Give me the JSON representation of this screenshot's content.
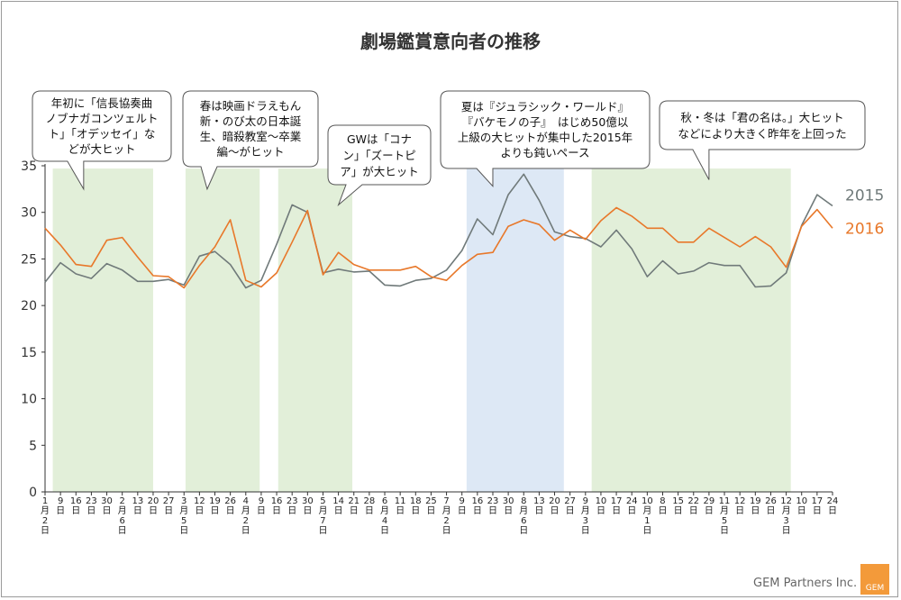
{
  "chart_data": {
    "type": "line",
    "title": "劇場鑑賞意向者の推移",
    "ylim": [
      0,
      35
    ],
    "yticks": [
      0,
      5,
      10,
      15,
      20,
      25,
      30,
      35
    ],
    "grid": false,
    "x_labels": [
      "1\n月\n2\n日",
      "9\n日",
      "16\n日",
      "23\n日",
      "30\n日",
      "2\n月\n6\n日",
      "13\n日",
      "20\n日",
      "27\n日",
      "3\n月\n5\n日",
      "12\n日",
      "19\n日",
      "26\n日",
      "4\n月\n2\n日",
      "9\n日",
      "16\n日",
      "23\n日",
      "30\n日",
      "5\n月\n7\n日",
      "14\n日",
      "21\n日",
      "28\n日",
      "6\n月\n4\n日",
      "11\n日",
      "18\n日",
      "25\n日",
      "7\n月\n2\n日",
      "9\n日",
      "16\n日",
      "23\n日",
      "30\n日",
      "8\n月\n6\n日",
      "13\n日",
      "20\n日",
      "27\n日",
      "9\n月\n3\n日",
      "10\n日",
      "17\n日",
      "24\n日",
      "10\n月\n1\n日",
      "8\n日",
      "15\n日",
      "22\n日",
      "29\n日",
      "11\n月\n5\n日",
      "12\n日",
      "19\n日",
      "26\n日",
      "12\n月\n3\n日",
      "10\n日",
      "17\n日",
      "24\n日"
    ],
    "series": [
      {
        "name": "2015",
        "color": "#707a7a",
        "values": [
          22.5,
          24.6,
          23.4,
          22.9,
          24.5,
          23.8,
          22.6,
          22.6,
          22.8,
          22.2,
          25.3,
          25.8,
          24.4,
          21.9,
          22.7,
          26.6,
          30.8,
          30.0,
          23.5,
          23.9,
          23.6,
          23.7,
          22.2,
          22.1,
          22.7,
          22.9,
          23.8,
          25.9,
          29.3,
          27.6,
          31.9,
          34.1,
          31.3,
          27.9,
          27.4,
          27.2,
          26.3,
          28.1,
          26.1,
          23.1,
          24.8,
          23.4,
          23.7,
          24.6,
          24.3,
          24.3,
          22.0,
          22.1,
          23.5,
          28.6,
          31.9,
          30.7
        ]
      },
      {
        "name": "2016",
        "color": "#e8782a",
        "values": [
          28.3,
          26.5,
          24.4,
          24.2,
          27.0,
          27.3,
          25.2,
          23.2,
          23.1,
          21.9,
          24.3,
          26.3,
          29.2,
          22.7,
          22.0,
          23.5,
          26.8,
          30.2,
          23.3,
          25.7,
          24.4,
          23.8,
          23.8,
          23.8,
          24.2,
          23.1,
          22.7,
          24.3,
          25.5,
          25.7,
          28.5,
          29.2,
          28.7,
          27.0,
          28.1,
          27.1,
          29.1,
          30.5,
          29.6,
          28.3,
          28.3,
          26.8,
          26.8,
          28.3,
          27.3,
          26.3,
          27.4,
          26.3,
          24.1,
          28.5,
          30.3,
          28.3
        ]
      }
    ],
    "highlight_bands": [
      {
        "start_index": 0.5,
        "end_index": 7.0,
        "color": "#e2efd9"
      },
      {
        "start_index": 9.1,
        "end_index": 13.9,
        "color": "#e2efd9"
      },
      {
        "start_index": 15.1,
        "end_index": 19.9,
        "color": "#e2efd9"
      },
      {
        "start_index": 27.3,
        "end_index": 33.6,
        "color": "#dde8f5"
      },
      {
        "start_index": 35.4,
        "end_index": 48.3,
        "color": "#e2efd9"
      }
    ],
    "annotations": [
      {
        "lines": [
          "年初に「信長協奏曲",
          "ノブナガコンツェルト",
          "ト」「オデッセイ」な",
          "どが大ヒット"
        ],
        "pointer_index": 2.5,
        "pointer_y": 32.5
      },
      {
        "lines": [
          "春は映画ドラえもん",
          "新・のび太の日本誕",
          "生、暗殺教室～卒業",
          "編～がヒット"
        ],
        "pointer_index": 10.5,
        "pointer_y": 32.5
      },
      {
        "lines": [
          "GWは「コナ",
          "ン」「ズートピ",
          "ア」が大ヒット"
        ],
        "pointer_index": 19.0,
        "pointer_y": 30.8
      },
      {
        "lines": [
          "夏は『ジュラシック・ワールド』",
          "『バケモノの子』　はじめ50億以",
          "上級の大ヒットが集中した2015年",
          "よりも鈍いペース"
        ],
        "pointer_index": 29.0,
        "pointer_y": 32.8
      },
      {
        "lines": [
          "秋・冬は「君の名は。」大ヒット",
          "などにより大きく昨年を上回った"
        ],
        "pointer_index": 43.0,
        "pointer_y": 33.5
      }
    ]
  },
  "credit": "GEM Partners Inc.",
  "logo_text": "GEM"
}
